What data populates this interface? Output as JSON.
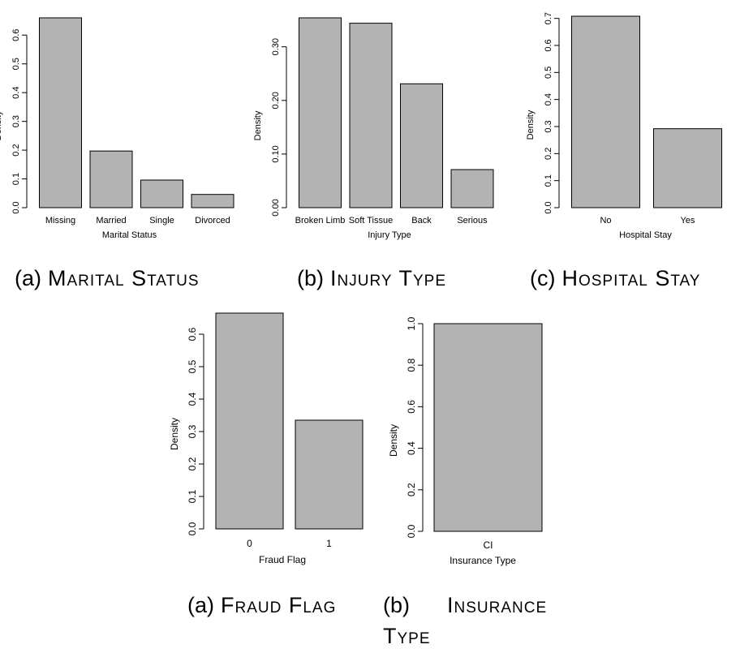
{
  "chart_data": [
    {
      "type": "bar",
      "title": "",
      "xlabel": "Marital Status",
      "ylabel": "Density",
      "categories": [
        "Missing",
        "Married",
        "Single",
        "Divorced"
      ],
      "values": [
        0.66,
        0.197,
        0.096,
        0.046
      ],
      "yticks": [
        "0.0",
        "0.1",
        "0.2",
        "0.3",
        "0.4",
        "0.5",
        "0.6"
      ],
      "ylim": [
        0,
        0.66
      ],
      "bar_color": "#b3b3b3"
    },
    {
      "type": "bar",
      "title": "",
      "xlabel": "Injury Type",
      "ylabel": "Density",
      "categories": [
        "Broken Limb",
        "Soft Tissue",
        "Back",
        "Serious"
      ],
      "values": [
        0.354,
        0.344,
        0.231,
        0.071
      ],
      "yticks": [
        "0.00",
        "0.10",
        "0.20",
        "0.30"
      ],
      "ylim": [
        0,
        0.354
      ],
      "bar_color": "#b3b3b3"
    },
    {
      "type": "bar",
      "title": "",
      "xlabel": "Hospital Stay",
      "ylabel": "Density",
      "categories": [
        "No",
        "Yes"
      ],
      "values": [
        0.708,
        0.292
      ],
      "yticks": [
        "0.0",
        "0.1",
        "0.2",
        "0.3",
        "0.4",
        "0.5",
        "0.6",
        "0.7"
      ],
      "ylim": [
        0,
        0.708
      ],
      "bar_color": "#b3b3b3"
    },
    {
      "type": "bar",
      "title": "",
      "xlabel": "Fraud Flag",
      "ylabel": "Density",
      "categories": [
        "0",
        "1"
      ],
      "values": [
        0.665,
        0.335
      ],
      "yticks": [
        "0.0",
        "0.1",
        "0.2",
        "0.3",
        "0.4",
        "0.5",
        "0.6"
      ],
      "ylim": [
        0,
        0.665
      ],
      "bar_color": "#b3b3b3"
    },
    {
      "type": "bar",
      "title": "",
      "xlabel": "Insurance Type",
      "ylabel": "Density",
      "categories": [
        "CI"
      ],
      "values": [
        1.0
      ],
      "yticks": [
        "0.0",
        "0.2",
        "0.4",
        "0.6",
        "0.8",
        "1.0"
      ],
      "ylim": [
        0,
        1.0
      ],
      "bar_color": "#b3b3b3"
    }
  ],
  "captions": [
    {
      "label": "(a)",
      "text": "Marital Status"
    },
    {
      "label": "(b)",
      "text": "Injury Type"
    },
    {
      "label": "(c)",
      "text": "Hospital Stay"
    },
    {
      "label": "(a)",
      "text": "Fraud Flag"
    },
    {
      "label": "(b)",
      "text": "Insurance Type"
    }
  ]
}
